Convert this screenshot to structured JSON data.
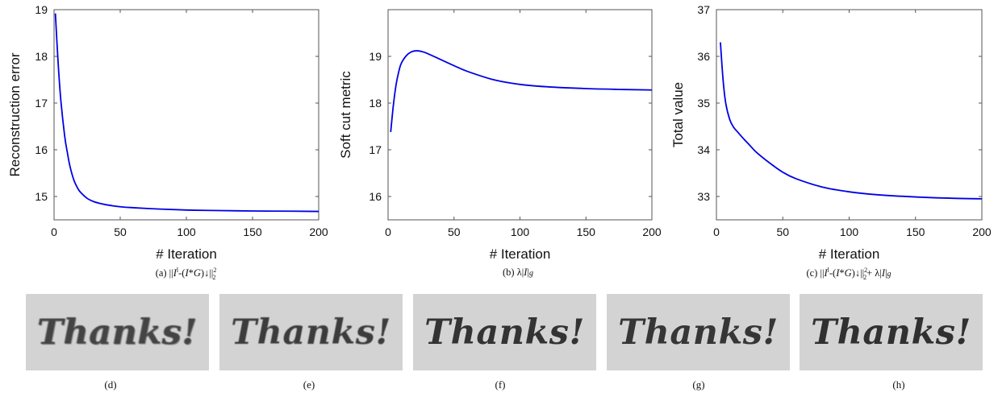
{
  "chart_data": [
    {
      "type": "line",
      "xlabel": "# Iteration",
      "ylabel": "Reconstruction error",
      "xlim": [
        0,
        200
      ],
      "ylim": [
        14.5,
        19
      ],
      "xticks": [
        0,
        50,
        100,
        150,
        200
      ],
      "yticks": [
        15,
        16,
        17,
        18,
        19
      ],
      "caption": "(a) ||I^l-(I*G)↓||²₂",
      "color": "#0000e6",
      "x": [
        1,
        3,
        5,
        8,
        10,
        12,
        15,
        18,
        20,
        25,
        30,
        35,
        40,
        50,
        60,
        80,
        100,
        120,
        150,
        180,
        200
      ],
      "y": [
        18.92,
        17.9,
        17.1,
        16.3,
        15.95,
        15.65,
        15.35,
        15.17,
        15.09,
        14.96,
        14.89,
        14.85,
        14.82,
        14.78,
        14.76,
        14.73,
        14.71,
        14.7,
        14.69,
        14.685,
        14.68
      ]
    },
    {
      "type": "line",
      "xlabel": "# Iteration",
      "ylabel": "Soft cut metric",
      "xlim": [
        0,
        200
      ],
      "ylim": [
        15.5,
        20
      ],
      "xticks": [
        0,
        50,
        100,
        150,
        200
      ],
      "yticks": [
        16,
        17,
        18,
        19
      ],
      "caption": "(b) λ|I|g",
      "color": "#0000e6",
      "x": [
        2,
        4,
        6,
        8,
        10,
        14,
        18,
        22,
        26,
        30,
        40,
        50,
        60,
        80,
        100,
        120,
        150,
        180,
        200
      ],
      "y": [
        17.38,
        17.95,
        18.38,
        18.66,
        18.85,
        19.02,
        19.1,
        19.12,
        19.1,
        19.06,
        18.93,
        18.8,
        18.68,
        18.5,
        18.4,
        18.35,
        18.31,
        18.29,
        18.28
      ]
    },
    {
      "type": "line",
      "xlabel": "# Iteration",
      "ylabel": "Total value",
      "xlim": [
        0,
        200
      ],
      "ylim": [
        32.5,
        37
      ],
      "xticks": [
        0,
        50,
        100,
        150,
        200
      ],
      "yticks": [
        33,
        34,
        35,
        36,
        37
      ],
      "caption": "(c) ||I^l-(I*G)↓||²₂ + λ|I|g",
      "color": "#0000e6",
      "x": [
        3,
        5,
        7,
        10,
        13,
        16,
        20,
        25,
        30,
        40,
        50,
        60,
        80,
        100,
        120,
        150,
        180,
        200
      ],
      "y": [
        36.3,
        35.5,
        35.0,
        34.65,
        34.48,
        34.38,
        34.25,
        34.1,
        33.95,
        33.72,
        33.52,
        33.38,
        33.2,
        33.1,
        33.04,
        32.99,
        32.96,
        32.95
      ]
    }
  ],
  "thumbnails": [
    {
      "text": "Thanks!",
      "label": "(d)"
    },
    {
      "text": "Thanks!",
      "label": "(e)"
    },
    {
      "text": "Thanks!",
      "label": "(f)"
    },
    {
      "text": "Thanks!",
      "label": "(g)"
    },
    {
      "text": "Thanks!",
      "label": "(h)"
    }
  ]
}
